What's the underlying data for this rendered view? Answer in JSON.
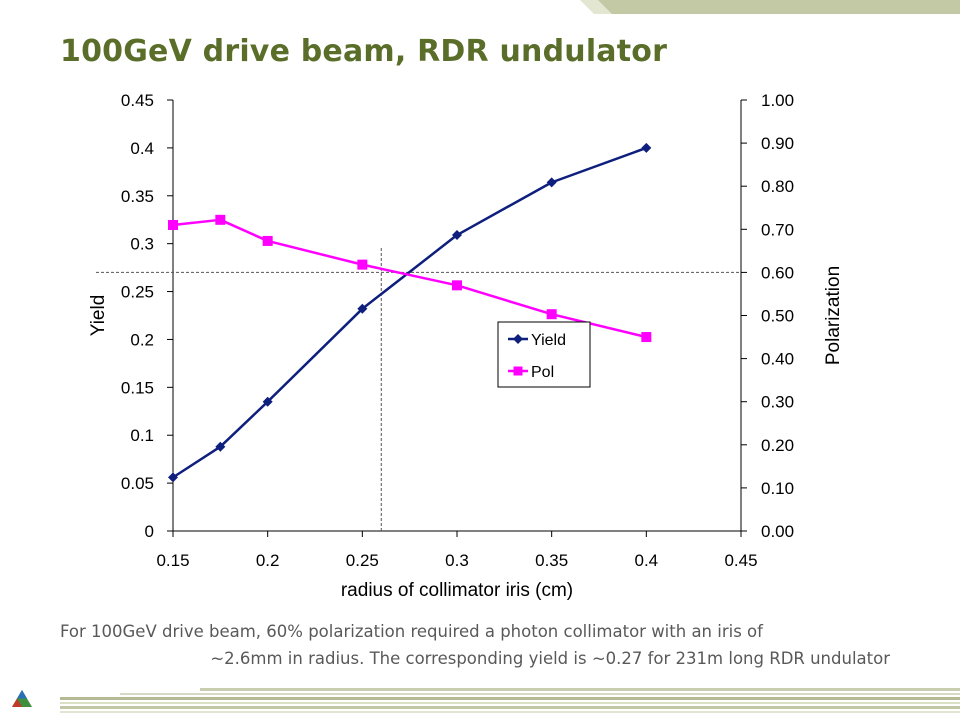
{
  "slide": {
    "title": "100GeV drive beam, RDR undulator",
    "caption_line1": "For 100GeV drive beam, 60% polarization required a photon collimator with an iris of",
    "caption_line2": "~2.6mm in radius.  The corresponding yield is ~0.27 for 231m long RDR undulator"
  },
  "colors": {
    "title": "#5a6e2a",
    "header_band": "#c3c8a5",
    "yield_series": "#0e1f7e",
    "pol_series": "#ff00ff"
  },
  "chart_data": {
    "type": "line",
    "title": "",
    "xlabel": "radius of collimator iris (cm)",
    "ylabel": "Yield",
    "y2label": "Polarization",
    "xlim": [
      0.15,
      0.45
    ],
    "ylim": [
      0,
      0.45
    ],
    "y2lim": [
      0,
      1.0
    ],
    "x_ticks": [
      "0.15",
      "0.2",
      "0.25",
      "0.3",
      "0.35",
      "0.4",
      "0.45"
    ],
    "y_ticks": [
      "0",
      "0.05",
      "0.1",
      "0.15",
      "0.2",
      "0.25",
      "0.3",
      "0.35",
      "0.4",
      "0.45"
    ],
    "y2_ticks": [
      "0.00",
      "0.10",
      "0.20",
      "0.30",
      "0.40",
      "0.50",
      "0.60",
      "0.70",
      "0.80",
      "0.90",
      "1.00"
    ],
    "legend_position": "center-right",
    "grid": false,
    "series": [
      {
        "name": "Yield",
        "axis": "left",
        "marker": "diamond",
        "color": "#0e1f7e",
        "x": [
          0.15,
          0.175,
          0.2,
          0.25,
          0.3,
          0.35,
          0.4
        ],
        "y": [
          0.056,
          0.088,
          0.135,
          0.232,
          0.309,
          0.364,
          0.4
        ]
      },
      {
        "name": "Pol",
        "axis": "right",
        "marker": "square",
        "color": "#ff00ff",
        "x": [
          0.15,
          0.175,
          0.2,
          0.25,
          0.3,
          0.35,
          0.4
        ],
        "y": [
          0.71,
          0.722,
          0.673,
          0.618,
          0.57,
          0.503,
          0.45
        ]
      }
    ],
    "reference_lines": [
      {
        "orientation": "horizontal",
        "axis": "right",
        "value": 0.6
      },
      {
        "orientation": "vertical",
        "value": 0.26
      }
    ]
  }
}
